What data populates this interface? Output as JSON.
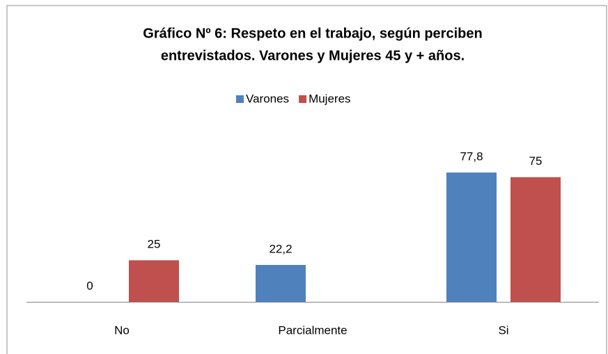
{
  "chart_data": {
    "type": "bar",
    "title": [
      "Gráfico Nº 6: Respeto en el trabajo, según perciben",
      "entrevistados. Varones y Mujeres 45 y + años."
    ],
    "categories": [
      "No",
      "Parcialmente",
      "Si"
    ],
    "series": [
      {
        "name": "Varones",
        "color": "#4f81bd",
        "values": [
          0,
          22.2,
          77.8
        ],
        "value_labels": [
          "0",
          "22,2",
          "77,8"
        ]
      },
      {
        "name": "Mujeres",
        "color": "#c0504d",
        "values": [
          25,
          null,
          75
        ],
        "value_labels": [
          "25",
          null,
          "75"
        ]
      }
    ],
    "ylim": [
      0,
      100
    ]
  }
}
